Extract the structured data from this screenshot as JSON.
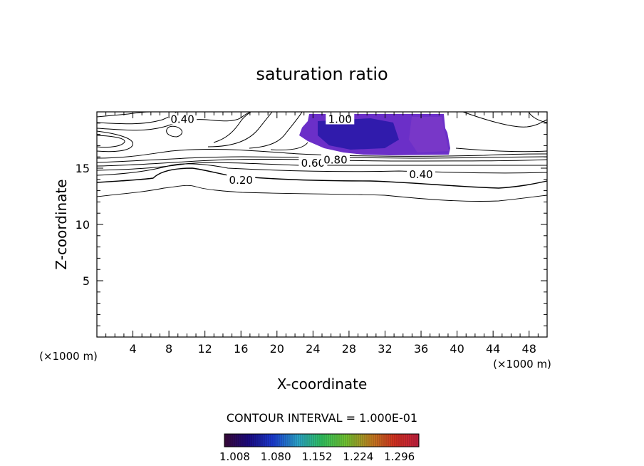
{
  "chart_data": {
    "type": "contour",
    "title": "saturation ratio",
    "xlabel": "X-coordinate",
    "ylabel": "Z-coordinate",
    "x_unit": "(×1000 m)",
    "x_unit_right": "(×1000 m)",
    "xlim": [
      0,
      50
    ],
    "ylim": [
      0,
      20
    ],
    "x_ticks": [
      "4",
      "8",
      "12",
      "16",
      "20",
      "24",
      "28",
      "32",
      "36",
      "40",
      "44",
      "48"
    ],
    "y_ticks": [
      "5",
      "10",
      "15"
    ],
    "contour_labels": [
      {
        "text": "0.40",
        "x": 9.5,
        "y": 19.4
      },
      {
        "text": "1.00",
        "x": 27.0,
        "y": 19.4
      },
      {
        "text": "0.60",
        "x": 24.0,
        "y": 15.5
      },
      {
        "text": "0.80",
        "x": 26.5,
        "y": 15.8
      },
      {
        "text": "0.40",
        "x": 36.0,
        "y": 14.5
      },
      {
        "text": "0.20",
        "x": 16.0,
        "y": 14.0
      }
    ],
    "contour_interval_text": "CONTOUR INTERVAL = 1.000E-01",
    "colorbar": {
      "labels": [
        "1.008",
        "1.080",
        "1.152",
        "1.224",
        "1.296"
      ],
      "range": [
        0.99,
        1.33
      ],
      "colors": [
        "#3a0a3a",
        "#1a0a80",
        "#1a3ad0",
        "#2aa0c8",
        "#30c060",
        "#70c030",
        "#c08020",
        "#d03020",
        "#c02040"
      ]
    },
    "shaded_color": "#6b2fc8",
    "grid": false
  }
}
